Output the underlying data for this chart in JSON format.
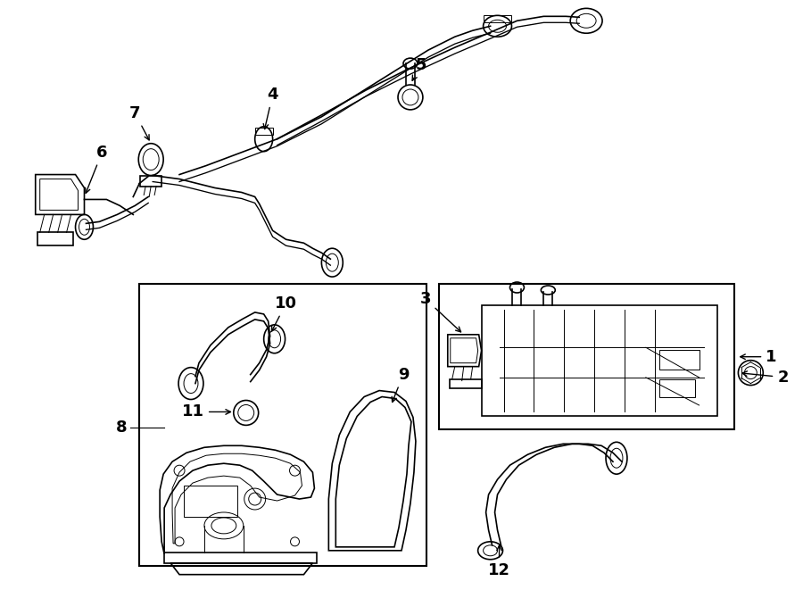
{
  "bg_color": "#ffffff",
  "line_color": "#000000",
  "lw": 1.2,
  "tlw": 0.7,
  "fig_w": 9.0,
  "fig_h": 6.61,
  "dpi": 100
}
